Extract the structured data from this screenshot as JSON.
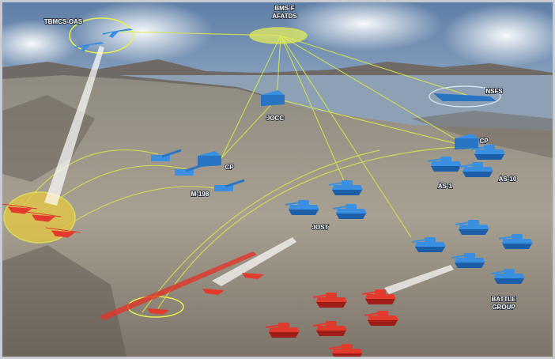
{
  "nodes": [
    {
      "label": "TBMCS-OAS"
    },
    {
      "lines": [
        "BMS-F",
        "AFATDS"
      ]
    },
    {
      "label": "NSFS"
    },
    {
      "label": "JOCC"
    },
    {
      "label": "CP"
    },
    {
      "label": "CP"
    },
    {
      "label": "AS-1"
    },
    {
      "label": "AS-10"
    },
    {
      "label": "M-198"
    },
    {
      "label": "JOST"
    },
    {
      "lines": [
        "BATTLE",
        "GROUP"
      ]
    }
  ]
}
